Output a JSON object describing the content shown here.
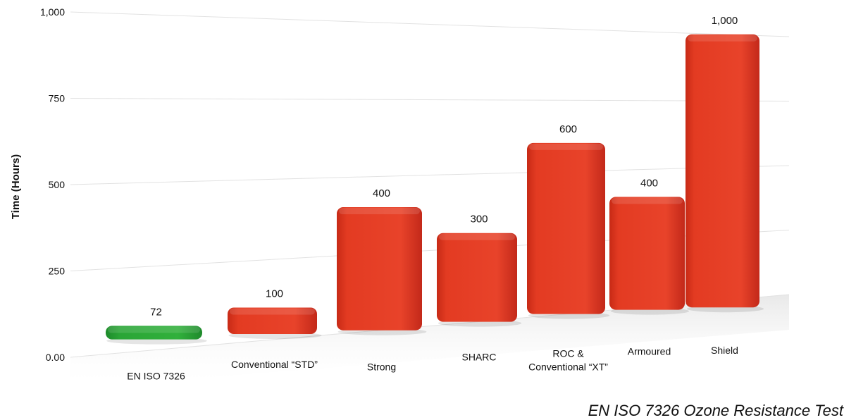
{
  "chart_data": {
    "type": "bar",
    "title": "",
    "xlabel": "",
    "ylabel": "Time (Hours)",
    "ylim": [
      0,
      1000
    ],
    "yticks": [
      0,
      250,
      500,
      750,
      1000
    ],
    "ytick_labels": [
      "0.00",
      "250",
      "500",
      "750",
      "1,000"
    ],
    "categories": [
      "EN ISO 7326",
      "Conventional “STD”",
      "Strong",
      "SHARC",
      "ROC & Conventional “XT”",
      "Armoured",
      "Shield"
    ],
    "category_lines": [
      [
        "EN ISO 7326"
      ],
      [
        "Conventional “STD”"
      ],
      [
        "Strong"
      ],
      [
        "SHARC"
      ],
      [
        "ROC &",
        "Conventional “XT”"
      ],
      [
        "Armoured"
      ],
      [
        "Shield"
      ]
    ],
    "values": [
      72,
      100,
      400,
      300,
      600,
      400,
      1000
    ],
    "value_labels": [
      "72",
      "100",
      "400",
      "300",
      "600",
      "400",
      "1,000"
    ],
    "colors": [
      "#2aa536",
      "#e33b22",
      "#e33b22",
      "#e33b22",
      "#e33b22",
      "#e33b22",
      "#e33b22"
    ],
    "grid": true,
    "legend": "none"
  },
  "caption": "EN ISO 7326 Ozone Resistance Test"
}
